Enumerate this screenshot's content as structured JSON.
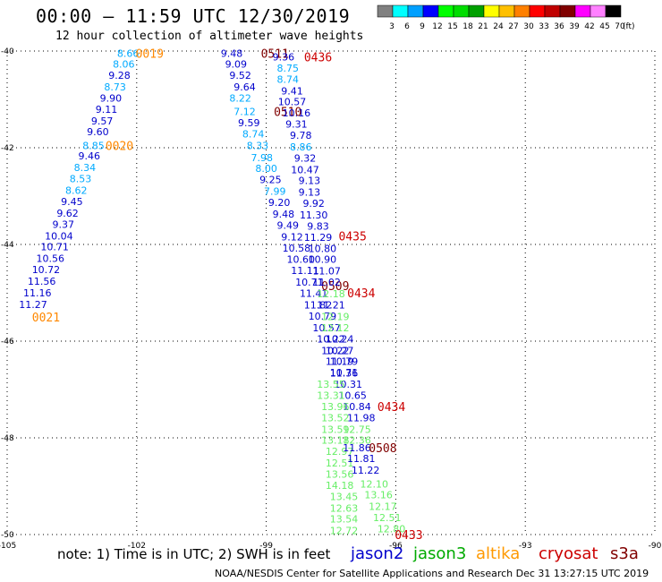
{
  "header": {
    "title": "00:00 – 11:59 UTC 12/30/2019",
    "subtitle": "12 hour collection of altimeter wave heights"
  },
  "colorbar": {
    "colors": [
      "#808080",
      "#00ffff",
      "#00a0ff",
      "#0000ff",
      "#00ff00",
      "#00dd00",
      "#00a000",
      "#ffff00",
      "#ffc000",
      "#ff8000",
      "#ff0000",
      "#c00000",
      "#800000",
      "#ff00ff",
      "#ff80ff",
      "#000000"
    ],
    "labels": [
      "3",
      "6",
      "9",
      "12",
      "15",
      "18",
      "21",
      "24",
      "27",
      "30",
      "33",
      "36",
      "39",
      "42",
      "45",
      "70",
      "(ft)"
    ]
  },
  "axes": {
    "x_ticks": [
      {
        "lon": -105,
        "label": "-105"
      },
      {
        "lon": -102,
        "label": "-102"
      },
      {
        "lon": -99,
        "label": "-99"
      },
      {
        "lon": -96,
        "label": "-96"
      },
      {
        "lon": -93,
        "label": "-93"
      },
      {
        "lon": -90,
        "label": "-90"
      }
    ],
    "y_ticks": [
      {
        "lat": -40,
        "label": "-40"
      },
      {
        "lat": -42,
        "label": "-42"
      },
      {
        "lat": -44,
        "label": "-44"
      },
      {
        "lat": -46,
        "label": "-46"
      },
      {
        "lat": -48,
        "label": "-48"
      },
      {
        "lat": -50,
        "label": "-50"
      }
    ],
    "lon_range": [
      -105,
      -90
    ],
    "lat_range": [
      -40,
      -50
    ]
  },
  "tracks": [
    {
      "satellite": "altika",
      "color": "#ff8800",
      "time_labels": [
        {
          "lon": -101.7,
          "lat": -40.05,
          "text": "0019"
        },
        {
          "lon": -102.4,
          "lat": -41.95,
          "text": "0020"
        },
        {
          "lon": -104.1,
          "lat": -45.5,
          "text": "0021"
        }
      ],
      "points": [
        {
          "lon": -102.2,
          "lat": -40.05,
          "v": "8.66",
          "c": "#00aaff"
        },
        {
          "lon": -102.3,
          "lat": -40.27,
          "v": "8.06",
          "c": "#00aaff"
        },
        {
          "lon": -102.4,
          "lat": -40.5,
          "v": "9.28",
          "c": "#0000cc"
        },
        {
          "lon": -102.5,
          "lat": -40.74,
          "v": "8.73",
          "c": "#00aaff"
        },
        {
          "lon": -102.6,
          "lat": -40.97,
          "v": "9.90",
          "c": "#0000cc"
        },
        {
          "lon": -102.7,
          "lat": -41.2,
          "v": "9.11",
          "c": "#0000cc"
        },
        {
          "lon": -102.8,
          "lat": -41.44,
          "v": "9.57",
          "c": "#0000cc"
        },
        {
          "lon": -102.9,
          "lat": -41.67,
          "v": "9.60",
          "c": "#0000cc"
        },
        {
          "lon": -103.0,
          "lat": -41.95,
          "v": "8.85",
          "c": "#00aaff"
        },
        {
          "lon": -103.1,
          "lat": -42.17,
          "v": "9.46",
          "c": "#0000cc"
        },
        {
          "lon": -103.2,
          "lat": -42.41,
          "v": "8.34",
          "c": "#00aaff"
        },
        {
          "lon": -103.3,
          "lat": -42.64,
          "v": "8.53",
          "c": "#00aaff"
        },
        {
          "lon": -103.4,
          "lat": -42.88,
          "v": "8.62",
          "c": "#00aaff"
        },
        {
          "lon": -103.5,
          "lat": -43.11,
          "v": "9.45",
          "c": "#0000cc"
        },
        {
          "lon": -103.6,
          "lat": -43.35,
          "v": "9.62",
          "c": "#0000cc"
        },
        {
          "lon": -103.7,
          "lat": -43.58,
          "v": "9.37",
          "c": "#0000cc"
        },
        {
          "lon": -103.8,
          "lat": -43.82,
          "v": "10.04",
          "c": "#0000cc"
        },
        {
          "lon": -103.9,
          "lat": -44.05,
          "v": "10.71",
          "c": "#0000cc"
        },
        {
          "lon": -104.0,
          "lat": -44.29,
          "v": "10.56",
          "c": "#0000cc"
        },
        {
          "lon": -104.1,
          "lat": -44.52,
          "v": "10.72",
          "c": "#0000cc"
        },
        {
          "lon": -104.2,
          "lat": -44.76,
          "v": "11.56",
          "c": "#0000cc"
        },
        {
          "lon": -104.3,
          "lat": -45.0,
          "v": "11.16",
          "c": "#0000cc"
        },
        {
          "lon": -104.4,
          "lat": -45.24,
          "v": "11.27",
          "c": "#0000cc"
        }
      ]
    },
    {
      "satellite": "mixed-west",
      "color": "#800000",
      "time_labels": [
        {
          "lon": -98.8,
          "lat": -40.05,
          "text": "0511"
        },
        {
          "lon": -98.5,
          "lat": -41.25,
          "text": "0510"
        },
        {
          "lon": -97.4,
          "lat": -44.85,
          "text": "0509"
        }
      ],
      "points": [
        {
          "lon": -99.8,
          "lat": -40.05,
          "v": "9.48",
          "c": "#0000cc"
        },
        {
          "lon": -99.7,
          "lat": -40.27,
          "v": "9.09",
          "c": "#0000cc"
        },
        {
          "lon": -99.6,
          "lat": -40.5,
          "v": "9.52",
          "c": "#0000cc"
        },
        {
          "lon": -99.5,
          "lat": -40.74,
          "v": "9.64",
          "c": "#0000cc"
        },
        {
          "lon": -99.6,
          "lat": -40.97,
          "v": "8.22",
          "c": "#00aaff"
        },
        {
          "lon": -99.5,
          "lat": -41.25,
          "v": "7.12",
          "c": "#00aaff"
        },
        {
          "lon": -99.4,
          "lat": -41.48,
          "v": "9.59",
          "c": "#0000cc"
        },
        {
          "lon": -99.3,
          "lat": -41.71,
          "v": "8.74",
          "c": "#00aaff"
        },
        {
          "lon": -99.2,
          "lat": -41.95,
          "v": "8.33",
          "c": "#00aaff"
        },
        {
          "lon": -99.1,
          "lat": -42.2,
          "v": "7.98",
          "c": "#00aaff"
        },
        {
          "lon": -99.0,
          "lat": -42.43,
          "v": "8.00",
          "c": "#00aaff"
        },
        {
          "lon": -98.9,
          "lat": -42.66,
          "v": "9.25",
          "c": "#0000cc"
        },
        {
          "lon": -98.8,
          "lat": -42.9,
          "v": "7.99",
          "c": "#00aaff"
        },
        {
          "lon": -98.7,
          "lat": -43.13,
          "v": "9.20",
          "c": "#0000cc"
        },
        {
          "lon": -98.6,
          "lat": -43.37,
          "v": "9.48",
          "c": "#0000cc"
        },
        {
          "lon": -98.5,
          "lat": -43.6,
          "v": "9.49",
          "c": "#0000cc"
        },
        {
          "lon": -98.4,
          "lat": -43.84,
          "v": "9.12",
          "c": "#0000cc"
        },
        {
          "lon": -98.3,
          "lat": -44.07,
          "v": "10.58",
          "c": "#0000cc"
        },
        {
          "lon": -98.2,
          "lat": -44.31,
          "v": "10.60",
          "c": "#0000cc"
        },
        {
          "lon": -98.1,
          "lat": -44.54,
          "v": "11.11",
          "c": "#0000cc"
        },
        {
          "lon": -98.0,
          "lat": -44.78,
          "v": "10.71",
          "c": "#0000cc"
        },
        {
          "lon": -97.9,
          "lat": -45.01,
          "v": "11.41",
          "c": "#0000cc"
        },
        {
          "lon": -97.8,
          "lat": -45.25,
          "v": "11.82",
          "c": "#0000cc"
        },
        {
          "lon": -97.7,
          "lat": -45.48,
          "v": "10.79",
          "c": "#0000cc"
        },
        {
          "lon": -97.6,
          "lat": -45.72,
          "v": "10.57",
          "c": "#0000cc"
        },
        {
          "lon": -97.5,
          "lat": -45.95,
          "v": "10.22",
          "c": "#0000cc"
        },
        {
          "lon": -97.4,
          "lat": -46.19,
          "v": "10.22",
          "c": "#0000cc"
        },
        {
          "lon": -97.3,
          "lat": -46.42,
          "v": "11.19",
          "c": "#0000cc"
        },
        {
          "lon": -97.2,
          "lat": -46.66,
          "v": "11.36",
          "c": "#0000cc"
        },
        {
          "lon": -97.1,
          "lat": -46.89,
          "v": "10.31",
          "c": "#0000cc"
        }
      ]
    },
    {
      "satellite": "mixed-east",
      "color": "#cc0000",
      "time_labels": [
        {
          "lon": -97.8,
          "lat": -40.12,
          "text": "0436"
        },
        {
          "lon": -97.0,
          "lat": -43.82,
          "text": "0435"
        },
        {
          "lon": -96.8,
          "lat": -45.0,
          "text": "0434"
        },
        {
          "lon": -96.1,
          "lat": -47.35,
          "text": "0434"
        },
        {
          "lon": -95.7,
          "lat": -50.0,
          "text": "0433"
        }
      ],
      "points": [
        {
          "lon": -98.6,
          "lat": -40.12,
          "v": "9.36",
          "c": "#0000cc"
        },
        {
          "lon": -98.5,
          "lat": -40.35,
          "v": "8.75",
          "c": "#00aaff"
        },
        {
          "lon": -98.5,
          "lat": -40.58,
          "v": "8.74",
          "c": "#00aaff"
        },
        {
          "lon": -98.4,
          "lat": -40.82,
          "v": "9.41",
          "c": "#0000cc"
        },
        {
          "lon": -98.4,
          "lat": -41.05,
          "v": "10.57",
          "c": "#0000cc"
        },
        {
          "lon": -98.3,
          "lat": -41.28,
          "v": "10.16",
          "c": "#0000cc"
        },
        {
          "lon": -98.3,
          "lat": -41.51,
          "v": "9.31",
          "c": "#0000cc"
        },
        {
          "lon": -98.2,
          "lat": -41.74,
          "v": "9.78",
          "c": "#0000cc"
        },
        {
          "lon": -98.2,
          "lat": -41.98,
          "v": "8.86",
          "c": "#00aaff"
        },
        {
          "lon": -98.1,
          "lat": -42.21,
          "v": "9.32",
          "c": "#0000cc"
        },
        {
          "lon": -98.1,
          "lat": -42.45,
          "v": "10.47",
          "c": "#0000cc"
        },
        {
          "lon": -98.0,
          "lat": -42.68,
          "v": "9.13",
          "c": "#0000cc"
        },
        {
          "lon": -98.0,
          "lat": -42.92,
          "v": "9.13",
          "c": "#0000cc"
        },
        {
          "lon": -97.9,
          "lat": -43.15,
          "v": "9.92",
          "c": "#0000cc"
        },
        {
          "lon": -97.9,
          "lat": -43.39,
          "v": "11.30",
          "c": "#0000cc"
        },
        {
          "lon": -97.8,
          "lat": -43.62,
          "v": "9.83",
          "c": "#0000cc"
        },
        {
          "lon": -97.8,
          "lat": -43.85,
          "v": "11.29",
          "c": "#0000cc"
        },
        {
          "lon": -97.7,
          "lat": -44.08,
          "v": "10.80",
          "c": "#0000cc"
        },
        {
          "lon": -97.7,
          "lat": -44.31,
          "v": "10.90",
          "c": "#0000cc"
        },
        {
          "lon": -97.6,
          "lat": -44.55,
          "v": "11.07",
          "c": "#0000cc"
        },
        {
          "lon": -97.6,
          "lat": -44.78,
          "v": "11.02",
          "c": "#0000cc"
        },
        {
          "lon": -97.5,
          "lat": -45.02,
          "v": "12.18",
          "c": "#66ee66"
        },
        {
          "lon": -97.5,
          "lat": -45.25,
          "v": "11.21",
          "c": "#0000cc"
        },
        {
          "lon": -97.4,
          "lat": -45.49,
          "v": "12.19",
          "c": "#66ee66"
        },
        {
          "lon": -97.4,
          "lat": -45.72,
          "v": "12.12",
          "c": "#66ee66"
        },
        {
          "lon": -97.3,
          "lat": -45.95,
          "v": "10.24",
          "c": "#0000cc"
        },
        {
          "lon": -97.3,
          "lat": -46.19,
          "v": "10.27",
          "c": "#0000cc"
        },
        {
          "lon": -97.2,
          "lat": -46.42,
          "v": "10.79",
          "c": "#0000cc"
        },
        {
          "lon": -97.2,
          "lat": -46.65,
          "v": "10.71",
          "c": "#0000cc"
        },
        {
          "lon": -97.0,
          "lat": -47.12,
          "v": "10.65",
          "c": "#0000cc"
        },
        {
          "lon": -96.9,
          "lat": -47.35,
          "v": "10.84",
          "c": "#0000cc"
        },
        {
          "lon": -96.8,
          "lat": -47.58,
          "v": "11.98",
          "c": "#0000cc"
        },
        {
          "lon": -96.9,
          "lat": -47.82,
          "v": "12.75",
          "c": "#66ee66"
        },
        {
          "lon": -96.9,
          "lat": -48.05,
          "v": "12.36",
          "c": "#66ee66"
        },
        {
          "lon": -96.5,
          "lat": -48.95,
          "v": "12.10",
          "c": "#66ee66"
        },
        {
          "lon": -96.4,
          "lat": -49.18,
          "v": "13.16",
          "c": "#66ee66"
        },
        {
          "lon": -96.3,
          "lat": -49.42,
          "v": "12.17",
          "c": "#66ee66"
        },
        {
          "lon": -96.2,
          "lat": -49.65,
          "v": "12.51",
          "c": "#66ee66"
        },
        {
          "lon": -96.1,
          "lat": -49.88,
          "v": "12.80",
          "c": "#66ee66"
        }
      ]
    },
    {
      "satellite": "jason3-s",
      "color": "#800000",
      "time_labels": [
        {
          "lon": -96.3,
          "lat": -48.2,
          "text": "0508"
        }
      ],
      "points": [
        {
          "lon": -97.5,
          "lat": -46.89,
          "v": "13.55",
          "c": "#66ee66"
        },
        {
          "lon": -97.5,
          "lat": -47.12,
          "v": "13.31",
          "c": "#66ee66"
        },
        {
          "lon": -97.4,
          "lat": -47.35,
          "v": "13.96",
          "c": "#66ee66"
        },
        {
          "lon": -97.4,
          "lat": -47.58,
          "v": "13.52",
          "c": "#66ee66"
        },
        {
          "lon": -97.4,
          "lat": -47.82,
          "v": "13.59",
          "c": "#66ee66"
        },
        {
          "lon": -97.4,
          "lat": -48.05,
          "v": "13.18",
          "c": "#66ee66"
        },
        {
          "lon": -97.3,
          "lat": -48.28,
          "v": "12.97",
          "c": "#66ee66"
        },
        {
          "lon": -97.3,
          "lat": -48.52,
          "v": "12.51",
          "c": "#66ee66"
        },
        {
          "lon": -97.3,
          "lat": -48.75,
          "v": "13.56",
          "c": "#66ee66"
        },
        {
          "lon": -97.3,
          "lat": -48.98,
          "v": "14.18",
          "c": "#66ee66"
        },
        {
          "lon": -97.2,
          "lat": -49.21,
          "v": "13.45",
          "c": "#66ee66"
        },
        {
          "lon": -97.2,
          "lat": -49.45,
          "v": "12.63",
          "c": "#66ee66"
        },
        {
          "lon": -97.2,
          "lat": -49.68,
          "v": "13.54",
          "c": "#66ee66"
        },
        {
          "lon": -97.2,
          "lat": -49.92,
          "v": "12.72",
          "c": "#66ee66"
        },
        {
          "lon": -96.9,
          "lat": -48.2,
          "v": "11.86",
          "c": "#0000cc"
        },
        {
          "lon": -96.8,
          "lat": -48.43,
          "v": "11.81",
          "c": "#0000cc"
        },
        {
          "lon": -96.7,
          "lat": -48.67,
          "v": "11.22",
          "c": "#0000cc"
        }
      ]
    }
  ],
  "note": "note:  1) Time is in UTC;  2) SWH is in feet",
  "satellite_legend": [
    {
      "name": "jason2",
      "color": "#0000cc"
    },
    {
      "name": "jason3",
      "color": "#00aa00"
    },
    {
      "name": "altika",
      "color": "#ff9900"
    },
    {
      "name": "cryosat",
      "color": "#cc0000"
    },
    {
      "name": "s3a",
      "color": "#800000"
    }
  ],
  "footer": "NOAA/NESDIS Center for Satellite Applications and Research     Dec 31 13:27:15 UTC 2019"
}
